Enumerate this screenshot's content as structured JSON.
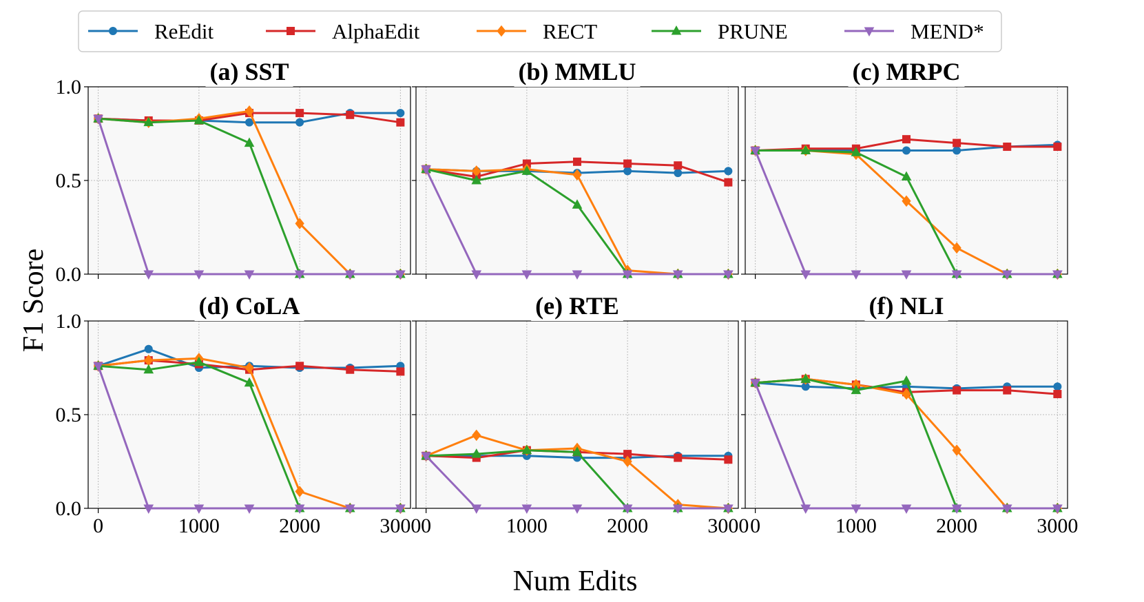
{
  "chart_data": {
    "type": "line",
    "figure": {
      "xlabel": "Num Edits",
      "ylabel": "F1 Score",
      "x": [
        0,
        500,
        1000,
        1500,
        2000,
        2500,
        3000
      ],
      "xticks": [
        "0",
        "1000",
        "2000",
        "3000"
      ],
      "yticks": [
        "0.0",
        "0.5",
        "1.0"
      ],
      "xlim": [
        -100,
        3100
      ],
      "ylim": [
        0,
        1
      ],
      "grid": true,
      "legend_position": "top",
      "series_colors": {
        "ReEdit": "#1f77b4",
        "AlphaEdit": "#d62728",
        "RECT": "#ff7f0e",
        "PRUNE": "#2ca02c",
        "MEND*": "#9467bd"
      },
      "series_markers": {
        "ReEdit": "circle",
        "AlphaEdit": "square",
        "RECT": "diamond",
        "PRUNE": "triangle-up",
        "MEND*": "triangle-down"
      }
    },
    "legend": [
      "ReEdit",
      "AlphaEdit",
      "RECT",
      "PRUNE",
      "MEND*"
    ],
    "panels": [
      {
        "title": "(a) SST",
        "series": [
          {
            "name": "ReEdit",
            "values": [
              0.83,
              0.82,
              0.82,
              0.81,
              0.81,
              0.86,
              0.86
            ]
          },
          {
            "name": "AlphaEdit",
            "values": [
              0.83,
              0.82,
              0.82,
              0.86,
              0.86,
              0.85,
              0.81
            ]
          },
          {
            "name": "RECT",
            "values": [
              0.83,
              0.81,
              0.83,
              0.87,
              0.27,
              0.0,
              0.0
            ]
          },
          {
            "name": "PRUNE",
            "values": [
              0.83,
              0.81,
              0.82,
              0.7,
              0.0,
              0.0,
              0.0
            ]
          },
          {
            "name": "MEND*",
            "values": [
              0.83,
              0.0,
              0.0,
              0.0,
              0.0,
              0.0,
              0.0
            ]
          }
        ]
      },
      {
        "title": "(b) MMLU",
        "series": [
          {
            "name": "ReEdit",
            "values": [
              0.56,
              0.55,
              0.55,
              0.54,
              0.55,
              0.54,
              0.55
            ]
          },
          {
            "name": "AlphaEdit",
            "values": [
              0.56,
              0.52,
              0.59,
              0.6,
              0.59,
              0.58,
              0.49
            ]
          },
          {
            "name": "RECT",
            "values": [
              0.56,
              0.55,
              0.56,
              0.53,
              0.02,
              0.0,
              0.0
            ]
          },
          {
            "name": "PRUNE",
            "values": [
              0.56,
              0.5,
              0.55,
              0.37,
              0.0,
              0.0,
              0.0
            ]
          },
          {
            "name": "MEND*",
            "values": [
              0.56,
              0.0,
              0.0,
              0.0,
              0.0,
              0.0,
              0.0
            ]
          }
        ]
      },
      {
        "title": "(c) MRPC",
        "series": [
          {
            "name": "ReEdit",
            "values": [
              0.66,
              0.66,
              0.66,
              0.66,
              0.66,
              0.68,
              0.69
            ]
          },
          {
            "name": "AlphaEdit",
            "values": [
              0.66,
              0.67,
              0.67,
              0.72,
              0.7,
              0.68,
              0.68
            ]
          },
          {
            "name": "RECT",
            "values": [
              0.66,
              0.66,
              0.64,
              0.39,
              0.14,
              0.0,
              0.0
            ]
          },
          {
            "name": "PRUNE",
            "values": [
              0.66,
              0.66,
              0.65,
              0.52,
              0.0,
              0.0,
              0.0
            ]
          },
          {
            "name": "MEND*",
            "values": [
              0.66,
              0.0,
              0.0,
              0.0,
              0.0,
              0.0,
              0.0
            ]
          }
        ]
      },
      {
        "title": "(d) CoLA",
        "series": [
          {
            "name": "ReEdit",
            "values": [
              0.76,
              0.85,
              0.75,
              0.76,
              0.75,
              0.75,
              0.76
            ]
          },
          {
            "name": "AlphaEdit",
            "values": [
              0.76,
              0.79,
              0.77,
              0.74,
              0.76,
              0.74,
              0.73
            ]
          },
          {
            "name": "RECT",
            "values": [
              0.76,
              0.79,
              0.8,
              0.75,
              0.09,
              0.0,
              0.0
            ]
          },
          {
            "name": "PRUNE",
            "values": [
              0.76,
              0.74,
              0.78,
              0.67,
              0.0,
              0.0,
              0.0
            ]
          },
          {
            "name": "MEND*",
            "values": [
              0.76,
              0.0,
              0.0,
              0.0,
              0.0,
              0.0,
              0.0
            ]
          }
        ]
      },
      {
        "title": "(e) RTE",
        "series": [
          {
            "name": "ReEdit",
            "values": [
              0.28,
              0.28,
              0.28,
              0.27,
              0.27,
              0.28,
              0.28
            ]
          },
          {
            "name": "AlphaEdit",
            "values": [
              0.28,
              0.27,
              0.31,
              0.3,
              0.29,
              0.27,
              0.26
            ]
          },
          {
            "name": "RECT",
            "values": [
              0.28,
              0.39,
              0.31,
              0.32,
              0.25,
              0.02,
              0.0
            ]
          },
          {
            "name": "PRUNE",
            "values": [
              0.28,
              0.29,
              0.31,
              0.3,
              0.0,
              0.0,
              0.0
            ]
          },
          {
            "name": "MEND*",
            "values": [
              0.28,
              0.0,
              0.0,
              0.0,
              0.0,
              0.0,
              0.0
            ]
          }
        ]
      },
      {
        "title": "(f) NLI",
        "series": [
          {
            "name": "ReEdit",
            "values": [
              0.67,
              0.65,
              0.64,
              0.65,
              0.64,
              0.65,
              0.65
            ]
          },
          {
            "name": "AlphaEdit",
            "values": [
              0.67,
              0.69,
              0.66,
              0.62,
              0.63,
              0.63,
              0.61
            ]
          },
          {
            "name": "RECT",
            "values": [
              0.67,
              0.69,
              0.66,
              0.61,
              0.31,
              0.0,
              0.0
            ]
          },
          {
            "name": "PRUNE",
            "values": [
              0.67,
              0.69,
              0.63,
              0.68,
              0.0,
              0.0,
              0.0
            ]
          },
          {
            "name": "MEND*",
            "values": [
              0.67,
              0.0,
              0.0,
              0.0,
              0.0,
              0.0,
              0.0
            ]
          }
        ]
      }
    ]
  }
}
